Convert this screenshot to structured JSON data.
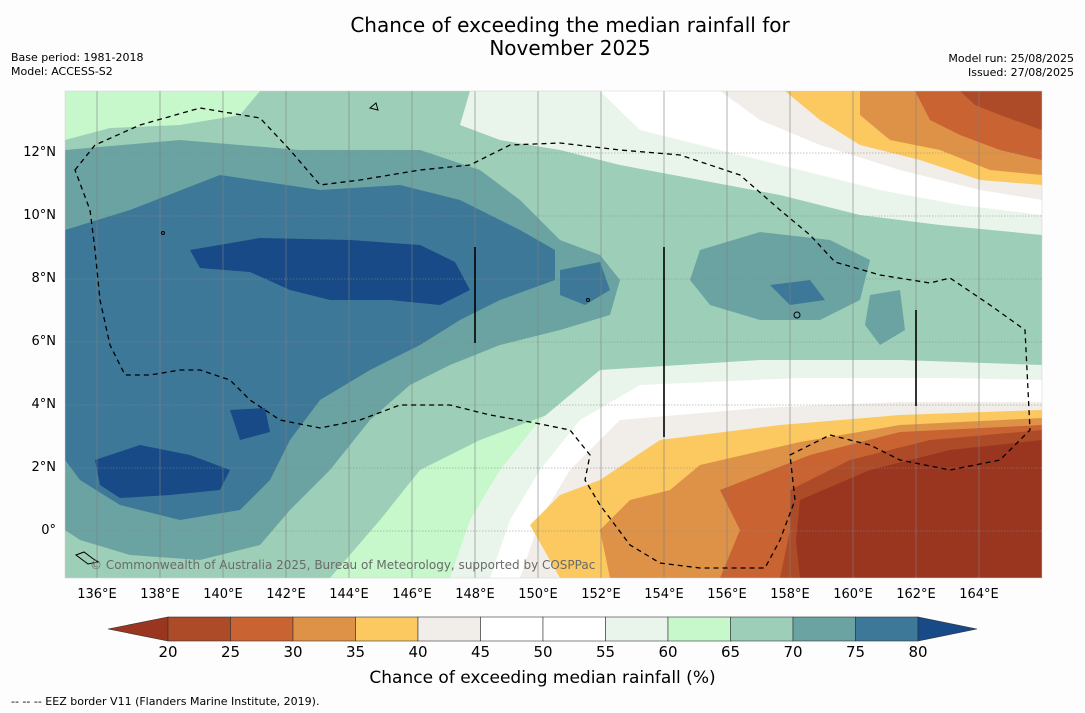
{
  "title_line1": "Chance of exceeding the median rainfall for",
  "title_line2": "November 2025",
  "meta_left": {
    "base_period": "Base period: 1981-2018",
    "model": "Model: ACCESS-S2"
  },
  "meta_right": {
    "model_run": "Model run: 25/08/2025",
    "issued": "Issued: 27/08/2025"
  },
  "copyright": "© Commonwealth of Australia 2025, Bureau of Meteorology, supported by COSPPac",
  "colorbar_title": "Chance of exceeding median rainfall (%)",
  "legend_note": "--  --  -- EEZ border V11 (Flanders Marine Institute, 2019).",
  "y_ticks": [
    "12°N",
    "10°N",
    "8°N",
    "6°N",
    "4°N",
    "2°N",
    "0°"
  ],
  "x_ticks": [
    "136°E",
    "138°E",
    "140°E",
    "142°E",
    "144°E",
    "146°E",
    "148°E",
    "150°E",
    "152°E",
    "154°E",
    "156°E",
    "158°E",
    "160°E",
    "162°E",
    "164°E"
  ],
  "colorbar_labels": [
    "20",
    "25",
    "30",
    "35",
    "40",
    "45",
    "50",
    "55",
    "60",
    "65",
    "70",
    "75",
    "80"
  ],
  "colors": {
    "below_20": "#9a3520",
    "c20_25": "#ad4a28",
    "c25_30": "#c96332",
    "c30_35": "#de9248",
    "c35_40": "#fcc860",
    "c40_45": "#f1ede8",
    "c45_50": "#ffffff",
    "c50_55": "#ffffff",
    "c55_60": "#e9f5ea",
    "c60_65": "#c6f8cc",
    "c65_70": "#9dcfb8",
    "c70_75": "#6aa3a2",
    "c75_80": "#3d7898",
    "above_80": "#174a86"
  }
}
